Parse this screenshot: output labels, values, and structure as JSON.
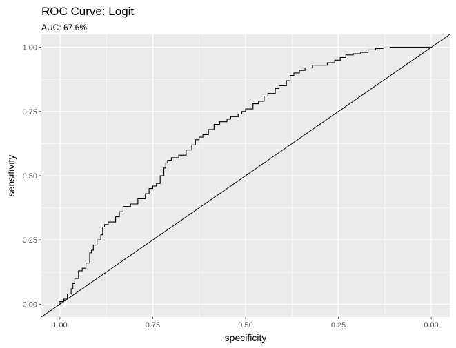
{
  "chart_data": {
    "type": "line",
    "title": "ROC Curve: Logit",
    "subtitle": "AUC: 67.6%",
    "xlabel": "specificity",
    "ylabel": "sensitivity",
    "x_reversed": true,
    "xlim": [
      1.05,
      -0.05
    ],
    "ylim": [
      -0.05,
      1.05
    ],
    "xticks": [
      1.0,
      0.75,
      0.5,
      0.25,
      0.0
    ],
    "xtick_labels": [
      "1.00",
      "0.75",
      "0.50",
      "0.25",
      "0.00"
    ],
    "yticks": [
      0.0,
      0.25,
      0.5,
      0.75,
      1.0
    ],
    "ytick_labels": [
      "0.00",
      "0.25",
      "0.50",
      "0.75",
      "1.00"
    ],
    "x_minor_gridlines": [
      0.875,
      0.625,
      0.375,
      0.125
    ],
    "y_minor_gridlines": [
      0.125,
      0.375,
      0.625,
      0.875
    ],
    "grid": true,
    "legend": "none",
    "colors": {
      "panel_background": "#ebebeb",
      "grid": "#ffffff",
      "line": "#000000"
    },
    "diagonal_reference": {
      "points": [
        [
          1.05,
          -0.05
        ],
        [
          -0.05,
          1.05
        ]
      ]
    },
    "series": [
      {
        "style": "step",
        "points": [
          [
            1.0,
            0.0
          ],
          [
            0.99,
            0.01
          ],
          [
            0.98,
            0.02
          ],
          [
            0.97,
            0.04
          ],
          [
            0.965,
            0.06
          ],
          [
            0.96,
            0.08
          ],
          [
            0.95,
            0.1
          ],
          [
            0.94,
            0.13
          ],
          [
            0.93,
            0.14
          ],
          [
            0.92,
            0.16
          ],
          [
            0.915,
            0.2
          ],
          [
            0.91,
            0.21
          ],
          [
            0.9,
            0.23
          ],
          [
            0.89,
            0.25
          ],
          [
            0.885,
            0.27
          ],
          [
            0.88,
            0.3
          ],
          [
            0.87,
            0.31
          ],
          [
            0.85,
            0.32
          ],
          [
            0.84,
            0.34
          ],
          [
            0.83,
            0.36
          ],
          [
            0.81,
            0.38
          ],
          [
            0.79,
            0.39
          ],
          [
            0.77,
            0.41
          ],
          [
            0.76,
            0.43
          ],
          [
            0.75,
            0.45
          ],
          [
            0.74,
            0.46
          ],
          [
            0.73,
            0.47
          ],
          [
            0.72,
            0.5
          ],
          [
            0.715,
            0.53
          ],
          [
            0.71,
            0.55
          ],
          [
            0.7,
            0.56
          ],
          [
            0.68,
            0.57
          ],
          [
            0.66,
            0.58
          ],
          [
            0.645,
            0.6
          ],
          [
            0.635,
            0.62
          ],
          [
            0.625,
            0.64
          ],
          [
            0.615,
            0.65
          ],
          [
            0.6,
            0.66
          ],
          [
            0.585,
            0.68
          ],
          [
            0.57,
            0.7
          ],
          [
            0.55,
            0.71
          ],
          [
            0.54,
            0.72
          ],
          [
            0.52,
            0.73
          ],
          [
            0.51,
            0.74
          ],
          [
            0.5,
            0.75
          ],
          [
            0.48,
            0.76
          ],
          [
            0.465,
            0.78
          ],
          [
            0.45,
            0.79
          ],
          [
            0.44,
            0.81
          ],
          [
            0.42,
            0.82
          ],
          [
            0.41,
            0.84
          ],
          [
            0.39,
            0.85
          ],
          [
            0.38,
            0.87
          ],
          [
            0.37,
            0.89
          ],
          [
            0.355,
            0.9
          ],
          [
            0.34,
            0.91
          ],
          [
            0.32,
            0.92
          ],
          [
            0.3,
            0.93
          ],
          [
            0.28,
            0.93
          ],
          [
            0.26,
            0.94
          ],
          [
            0.245,
            0.95
          ],
          [
            0.23,
            0.96
          ],
          [
            0.21,
            0.97
          ],
          [
            0.19,
            0.975
          ],
          [
            0.17,
            0.98
          ],
          [
            0.15,
            0.99
          ],
          [
            0.13,
            0.995
          ],
          [
            0.11,
            0.998
          ],
          [
            0.09,
            1.0
          ],
          [
            0.0,
            1.0
          ]
        ]
      }
    ]
  }
}
